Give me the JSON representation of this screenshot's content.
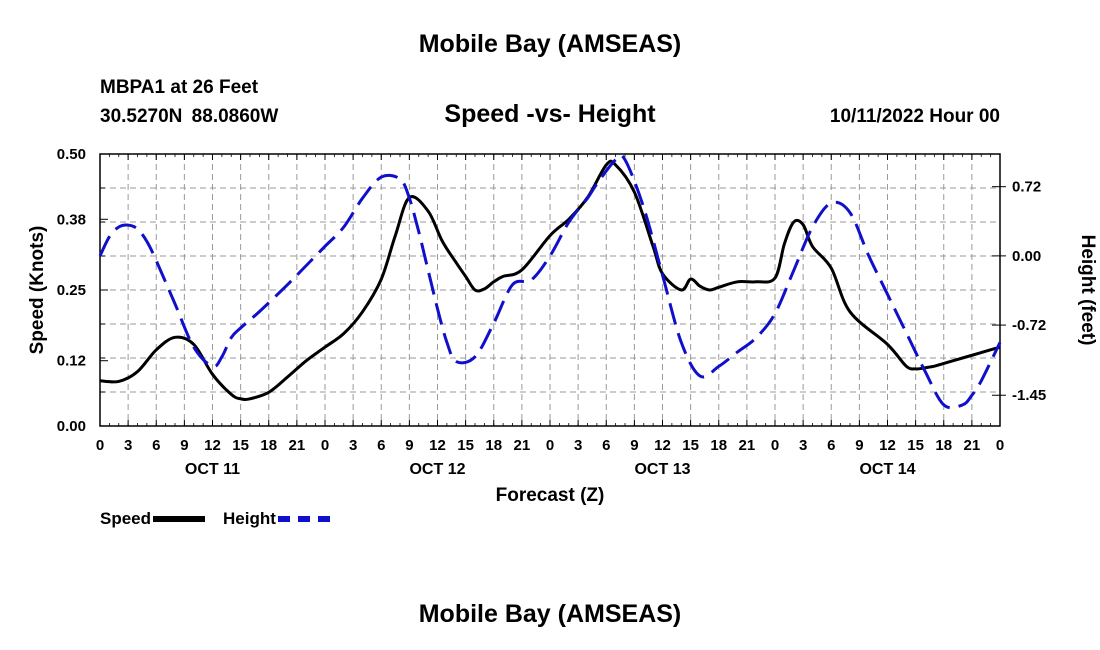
{
  "header": {
    "title": "Mobile Bay (AMSEAS)",
    "station": "MBPA1 at 26 Feet",
    "coordinates": "30.5270N  88.0860W",
    "subtitle": "Speed -vs- Height",
    "datetime": "10/11/2022 Hour 00"
  },
  "footer": {
    "title": "Mobile Bay (AMSEAS)"
  },
  "colors": {
    "speed": "#000000",
    "height": "#1010cc",
    "grid": "#9a9a9a"
  },
  "chart_data": {
    "type": "line",
    "title": "Speed -vs- Height",
    "xlabel": "Forecast (Z)",
    "ylabel_left": "Speed (Knots)",
    "ylabel_right": "Height (feet)",
    "x_range_hours": [
      0,
      96
    ],
    "x_tick_labels": [
      "0",
      "3",
      "6",
      "9",
      "12",
      "15",
      "18",
      "21",
      "0",
      "3",
      "6",
      "9",
      "12",
      "15",
      "18",
      "21",
      "0",
      "3",
      "6",
      "9",
      "12",
      "15",
      "18",
      "21",
      "0",
      "3",
      "6",
      "9",
      "12",
      "15",
      "18",
      "21",
      "0"
    ],
    "day_labels": [
      {
        "hour": 12,
        "label": "OCT 11"
      },
      {
        "hour": 36,
        "label": "OCT 12"
      },
      {
        "hour": 60,
        "label": "OCT 13"
      },
      {
        "hour": 84,
        "label": "OCT 14"
      }
    ],
    "y_left": {
      "ticks": [
        0.0,
        0.12,
        0.25,
        0.38,
        0.5
      ],
      "tick_labels": [
        "0.00",
        "0.12",
        "0.25",
        "0.38",
        "0.50"
      ],
      "range": [
        0,
        0.5
      ]
    },
    "y_right": {
      "ticks": [
        0.72,
        0.0,
        -0.72,
        -1.45
      ],
      "tick_labels": [
        "0.72",
        "0.00",
        "-0.72",
        "-1.45"
      ],
      "range": [
        -1.77,
        1.06
      ]
    },
    "grid": true,
    "legend_position": "bottom-left",
    "series": [
      {
        "name": "Speed",
        "axis": "left",
        "style": "solid",
        "x": [
          0,
          2,
          4,
          6,
          8,
          10,
          12,
          14,
          15,
          16,
          18,
          20,
          22,
          24,
          26,
          28,
          30,
          31.5,
          33,
          35,
          36.5,
          38,
          39,
          40,
          41,
          42,
          43,
          45,
          48,
          50,
          52,
          54,
          55,
          57,
          59,
          60,
          62,
          63,
          64,
          65,
          66,
          68,
          70,
          72,
          73,
          74,
          75,
          76,
          78,
          80,
          84,
          86,
          87,
          88,
          89,
          90,
          92,
          94,
          95,
          96
        ],
        "y": [
          0.083,
          0.082,
          0.1,
          0.14,
          0.163,
          0.15,
          0.095,
          0.058,
          0.05,
          0.05,
          0.062,
          0.09,
          0.12,
          0.145,
          0.17,
          0.21,
          0.27,
          0.35,
          0.42,
          0.395,
          0.34,
          0.3,
          0.275,
          0.25,
          0.252,
          0.265,
          0.275,
          0.287,
          0.35,
          0.38,
          0.42,
          0.48,
          0.48,
          0.43,
          0.33,
          0.28,
          0.25,
          0.27,
          0.257,
          0.25,
          0.255,
          0.265,
          0.265,
          0.272,
          0.335,
          0.375,
          0.37,
          0.33,
          0.29,
          0.21,
          0.15,
          0.11,
          0.105,
          0.107,
          0.11,
          0.115,
          0.125,
          0.135,
          0.14,
          0.145
        ]
      },
      {
        "name": "Height",
        "axis": "right",
        "style": "dashed",
        "x": [
          0,
          1,
          2,
          3,
          4,
          5,
          6,
          8,
          10,
          12,
          13,
          14,
          15,
          17,
          20,
          22,
          24,
          26,
          28,
          30,
          32,
          33,
          34,
          35,
          36,
          37,
          38,
          40,
          42,
          44,
          46,
          48,
          50,
          52,
          53,
          55,
          56,
          58,
          60,
          62,
          64,
          66,
          68,
          70,
          72,
          74,
          76,
          78,
          80,
          82,
          84,
          86,
          88,
          90,
          92,
          93,
          94,
          96
        ],
        "y": [
          0.0,
          0.2,
          0.3,
          0.32,
          0.28,
          0.15,
          -0.05,
          -0.5,
          -0.95,
          -1.15,
          -1.05,
          -0.85,
          -0.75,
          -0.58,
          -0.3,
          -0.1,
          0.1,
          0.3,
          0.6,
          0.82,
          0.8,
          0.6,
          0.25,
          -0.15,
          -0.55,
          -0.9,
          -1.1,
          -1.05,
          -0.7,
          -0.3,
          -0.25,
          0.0,
          0.35,
          0.6,
          0.75,
          1.0,
          1.0,
          0.5,
          -0.2,
          -0.9,
          -1.25,
          -1.15,
          -1.0,
          -0.85,
          -0.6,
          -0.15,
          0.3,
          0.55,
          0.45,
          0.0,
          -0.4,
          -0.8,
          -1.2,
          -1.55,
          -1.55,
          -1.45,
          -1.3,
          -0.9
        ]
      }
    ]
  }
}
